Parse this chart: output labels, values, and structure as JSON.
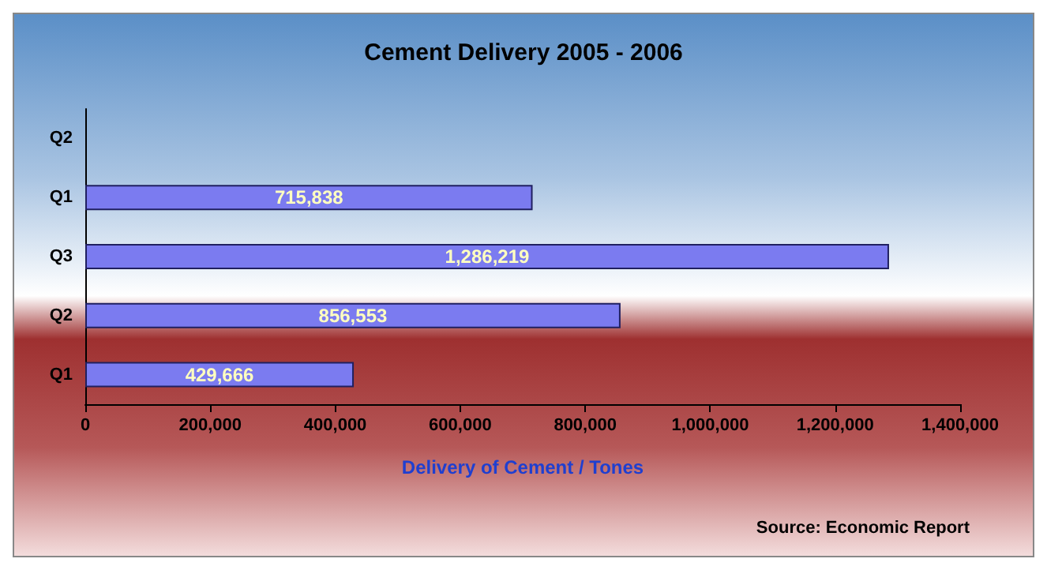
{
  "chart_data": {
    "type": "bar",
    "orientation": "horizontal",
    "title": "Cement Delivery 2005 - 2006",
    "xlabel": "Delivery of Cement / Tones",
    "annotations": [
      "Source: Economic Report"
    ],
    "categories": [
      "Q2",
      "Q1",
      "Q3",
      "Q2",
      "Q1"
    ],
    "series": [
      {
        "color": "#7b7bf0",
        "values": [
          null,
          715838,
          1286219,
          856553,
          429666
        ],
        "value_labels": [
          null,
          "715,838",
          "1,286,219",
          "856,553",
          "429,666"
        ]
      }
    ],
    "xlim": [
      0,
      1400000
    ],
    "xticks": [
      0,
      {
        "value": 200000,
        "label": "200,000"
      },
      {
        "value": 400000,
        "label": "400,000"
      },
      {
        "value": 600000,
        "label": "600,000"
      },
      {
        "value": 800000,
        "label": "800,000"
      },
      {
        "value": 1000000,
        "label": "1,000,000"
      },
      {
        "value": 1200000,
        "label": "1,200,000"
      },
      {
        "value": 1400000,
        "label": "1,400,000"
      }
    ],
    "grid": false
  }
}
